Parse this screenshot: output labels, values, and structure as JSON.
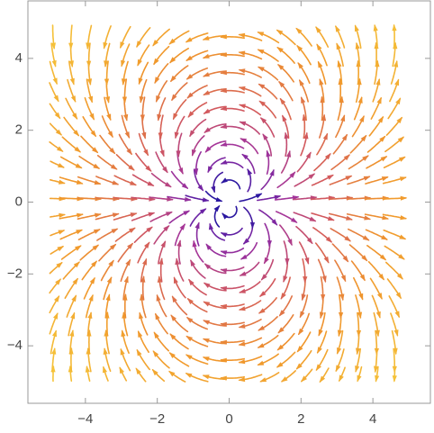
{
  "chart_data": {
    "type": "stream",
    "xlim": [
      -5.6,
      5.6
    ],
    "ylim": [
      -5.6,
      5.6
    ],
    "xticks": [
      {
        "value": -4,
        "label": "−4"
      },
      {
        "value": -2,
        "label": "−2"
      },
      0,
      2,
      4
    ],
    "yticks": [
      {
        "value": -4,
        "label": "−4"
      },
      {
        "value": -2,
        "label": "−2"
      },
      0,
      2,
      4
    ],
    "colormap": [
      "#2a17a0",
      "#6a22a4",
      "#a3349a",
      "#d35a5c",
      "#f0962c",
      "#f6c83a"
    ]
  }
}
